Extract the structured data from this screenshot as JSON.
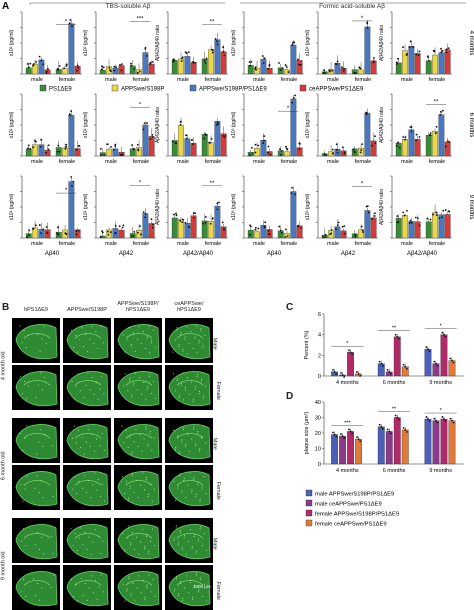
{
  "panelA": {
    "letter": "A",
    "group_headers": [
      "TBS-soluble Aβ",
      "Formic acid-soluble Aβ"
    ],
    "row_labels": [
      "4 months",
      "6 months",
      "9 months"
    ],
    "col_xlabels": [
      "Aβ40",
      "Aβ42",
      "Aβ42/Aβ40",
      "Aβ40",
      "Aβ42",
      "Aβ42/Aβ40"
    ],
    "ylabels": [
      "x10² (pg/ml)",
      "x10² (pg/ml)",
      "Aβ42/Aβ40 ratio",
      "x10³ (pg/ml)",
      "x10³ (pg/ml)",
      "Aβ42/Aβ40 ratio"
    ],
    "sex_labels": [
      "male",
      "female"
    ],
    "legend": [
      {
        "label": "PS1ΔE9",
        "color": "#3a8a3a"
      },
      {
        "label": "APPSwe/S198P",
        "color": "#e8d84a"
      },
      {
        "label": "APPSwe/S198P/PS1ΔE9",
        "color": "#4a78c0"
      },
      {
        "label": "ceAPPSwe/PS1ΔE9",
        "color": "#d63a3a"
      }
    ],
    "sig_marks": [
      "*",
      "***",
      "**",
      "*",
      "*",
      "**",
      "****",
      "*",
      "*"
    ]
  },
  "panelB": {
    "letter": "B",
    "columns": [
      "hPS1ΔE9",
      "APPSwe/S198P",
      "APPSwe/S198P/ hPS1ΔE9",
      "ceAPPSwe/ hPS1ΔE9"
    ],
    "ages": [
      "4 month old",
      "6 month old",
      "9 month old"
    ],
    "sexes": [
      "Male",
      "Female"
    ],
    "scale_bar": "1000 μm"
  },
  "chart_data": [
    {
      "type": "bar",
      "panel": "C",
      "ylabel": "Percent (%)",
      "ylim": [
        0,
        6
      ],
      "yticks": [
        0,
        2,
        4,
        6
      ],
      "categories": [
        "4 months",
        "6 months",
        "9 months"
      ],
      "series": [
        {
          "name": "male APPSwe/S198P/PS1ΔE9",
          "color": "#4a5fb5",
          "values": [
            0.4,
            1.2,
            2.6
          ]
        },
        {
          "name": "male ceAPPSwe/PS1ΔE9",
          "color": "#8c3a8c",
          "values": [
            0.1,
            0.4,
            1.2
          ]
        },
        {
          "name": "female APPSwe/S198P/PS1ΔE9",
          "color": "#b02a6a",
          "values": [
            2.3,
            3.8,
            4.0
          ]
        },
        {
          "name": "female ceAPPSwe/PS1ΔE9",
          "color": "#e07a3a",
          "values": [
            0.2,
            0.9,
            1.5
          ]
        }
      ],
      "sig_marks": [
        "*",
        "**",
        "*",
        "****",
        "*",
        "*",
        "**"
      ]
    },
    {
      "type": "bar",
      "panel": "D",
      "ylabel": "plaque size (μm²)",
      "ylim": [
        0,
        40
      ],
      "yticks": [
        0,
        10,
        20,
        30,
        40
      ],
      "categories": [
        "4 months",
        "6 months",
        "9 months"
      ],
      "series": [
        {
          "name": "male APPSwe/S198P/PS1ΔE9",
          "color": "#4a5fb5",
          "values": [
            19,
            24,
            29
          ]
        },
        {
          "name": "male ceAPPSwe/PS1ΔE9",
          "color": "#8c3a8c",
          "values": [
            18,
            21,
            28
          ]
        },
        {
          "name": "female APPSwe/S198P/PS1ΔE9",
          "color": "#b02a6a",
          "values": [
            21,
            30,
            29
          ]
        },
        {
          "name": "female ceAPPSwe/PS1ΔE9",
          "color": "#e07a3a",
          "values": [
            16,
            22,
            28
          ]
        }
      ],
      "sig_marks": [
        "***",
        "**",
        "*"
      ]
    }
  ],
  "panelC_letter": "C",
  "panelD_letter": "D"
}
